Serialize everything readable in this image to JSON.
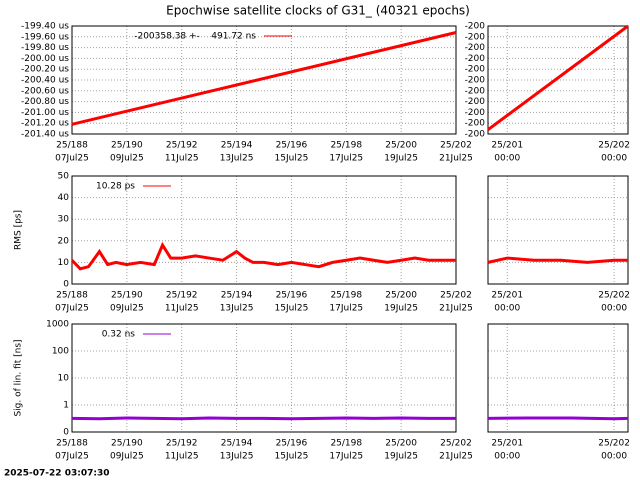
{
  "title": "Epochwise satellite clocks of G31_ (40321 epochs)",
  "timestamp": "2025-07-22 03:07:30",
  "chart_data": [
    {
      "type": "line",
      "xlim": [
        188,
        202
      ],
      "ylim": [
        -201.4,
        -199.4
      ],
      "xticks": [
        {
          "value": 188,
          "label": "25/188"
        },
        {
          "value": 190,
          "label": "25/190"
        },
        {
          "value": 192,
          "label": "25/192"
        },
        {
          "value": 194,
          "label": "25/194"
        },
        {
          "value": 196,
          "label": "25/196"
        },
        {
          "value": 198,
          "label": "25/198"
        },
        {
          "value": 200,
          "label": "25/200"
        },
        {
          "value": 202,
          "label": "25/202"
        }
      ],
      "xtick_sublabels": [
        "07Jul25",
        "09Jul25",
        "11Jul25",
        "13Jul25",
        "15Jul25",
        "17Jul25",
        "19Jul25",
        "21Jul25"
      ],
      "yticks": [
        {
          "value": -199.4,
          "label": "-199.40 us"
        },
        {
          "value": -199.6,
          "label": "-199.60 us"
        },
        {
          "value": -199.8,
          "label": "-199.80 us"
        },
        {
          "value": -200.0,
          "label": "-200.00 us"
        },
        {
          "value": -200.2,
          "label": "-200.20 us"
        },
        {
          "value": -200.4,
          "label": "-200.40 us"
        },
        {
          "value": -200.6,
          "label": "-200.60 us"
        },
        {
          "value": -200.8,
          "label": "-200.80 us"
        },
        {
          "value": -201.0,
          "label": "-201.00 us"
        },
        {
          "value": -201.2,
          "label": "-201.20 us"
        },
        {
          "value": -201.4,
          "label": "-201.40 us"
        }
      ],
      "grid": true,
      "log": false,
      "series": [
        {
          "name": "-200358.38 +-    491.72 ns",
          "color": "#ff0000",
          "x": [
            188,
            202
          ],
          "values": [
            -201.22,
            -199.52
          ]
        }
      ]
    },
    {
      "type": "line",
      "xlim": [
        200.82,
        202.13
      ],
      "ylim": [
        -200.45,
        -199.95
      ],
      "xticks": [
        {
          "value": 201,
          "label": "25/201"
        },
        {
          "value": 202,
          "label": "25/202"
        }
      ],
      "xtick_sublabels": [
        "00:00",
        "00:00"
      ],
      "yticks": [
        {
          "value": -199.95,
          "label": "-200"
        },
        {
          "value": -200.0,
          "label": "-200"
        },
        {
          "value": -200.05,
          "label": "-200"
        },
        {
          "value": -200.1,
          "label": "-200"
        },
        {
          "value": -200.15,
          "label": "-200"
        },
        {
          "value": -200.2,
          "label": "-200"
        },
        {
          "value": -200.25,
          "label": "-200"
        },
        {
          "value": -200.3,
          "label": "-200"
        },
        {
          "value": -200.35,
          "label": "-200"
        },
        {
          "value": -200.4,
          "label": "-200"
        },
        {
          "value": -200.45,
          "label": "-200"
        }
      ],
      "grid": true,
      "log": false,
      "series": [
        {
          "color": "#ff0000",
          "x": [
            200.82,
            202.13
          ],
          "values": [
            -200.43,
            -199.95
          ]
        }
      ]
    },
    {
      "type": "line",
      "ylabel": "RMS [ps]",
      "xlim": [
        188,
        202
      ],
      "ylim": [
        0,
        50
      ],
      "xticks": [
        {
          "value": 188,
          "label": "25/188"
        },
        {
          "value": 190,
          "label": "25/190"
        },
        {
          "value": 192,
          "label": "25/192"
        },
        {
          "value": 194,
          "label": "25/194"
        },
        {
          "value": 196,
          "label": "25/196"
        },
        {
          "value": 198,
          "label": "25/198"
        },
        {
          "value": 200,
          "label": "25/200"
        },
        {
          "value": 202,
          "label": "25/202"
        }
      ],
      "xtick_sublabels": [
        "07Jul25",
        "09Jul25",
        "11Jul25",
        "13Jul25",
        "15Jul25",
        "17Jul25",
        "19Jul25",
        "21Jul25"
      ],
      "yticks": [
        0,
        10,
        20,
        30,
        40,
        50
      ],
      "grid": true,
      "log": false,
      "series": [
        {
          "name": "10.28 ps",
          "color": "#ff0000",
          "x": [
            188,
            188.3,
            188.6,
            189,
            189.3,
            189.6,
            190,
            190.5,
            191,
            191.3,
            191.6,
            192,
            192.5,
            193,
            193.5,
            194,
            194.3,
            194.6,
            195,
            195.5,
            196,
            196.5,
            197,
            197.5,
            198,
            198.5,
            199,
            199.5,
            200,
            200.5,
            201,
            201.5,
            202
          ],
          "values": [
            11,
            7,
            8,
            15,
            9,
            10,
            9,
            10,
            9,
            18,
            12,
            12,
            13,
            12,
            11,
            15,
            12,
            10,
            10,
            9,
            10,
            9,
            8,
            10,
            11,
            12,
            11,
            10,
            11,
            12,
            11,
            11,
            11
          ]
        }
      ]
    },
    {
      "type": "line",
      "xlim": [
        200.82,
        202.13
      ],
      "ylim": [
        0,
        50
      ],
      "xticks": [
        {
          "value": 201,
          "label": "25/201"
        },
        {
          "value": 202,
          "label": "25/202"
        }
      ],
      "xtick_sublabels": [
        "00:00",
        "00:00"
      ],
      "yticks": [
        0,
        10,
        20,
        30,
        40,
        50
      ],
      "show_ytick_labels": false,
      "grid": true,
      "log": false,
      "series": [
        {
          "color": "#ff0000",
          "x": [
            200.82,
            201,
            201.25,
            201.5,
            201.75,
            202,
            202.13
          ],
          "values": [
            10,
            12,
            11,
            11,
            10,
            11,
            11
          ]
        }
      ]
    },
    {
      "type": "line",
      "ylabel": "Sig. of lin. fit [ns]",
      "xlim": [
        188,
        202
      ],
      "ylim": [
        0.1,
        1000
      ],
      "xticks": [
        {
          "value": 188,
          "label": "25/188"
        },
        {
          "value": 190,
          "label": "25/190"
        },
        {
          "value": 192,
          "label": "25/192"
        },
        {
          "value": 194,
          "label": "25/194"
        },
        {
          "value": 196,
          "label": "25/196"
        },
        {
          "value": 198,
          "label": "25/198"
        },
        {
          "value": 200,
          "label": "25/200"
        },
        {
          "value": 202,
          "label": "25/202"
        }
      ],
      "xtick_sublabels": [
        "07Jul25",
        "09Jul25",
        "11Jul25",
        "13Jul25",
        "15Jul25",
        "17Jul25",
        "19Jul25",
        "21Jul25"
      ],
      "yticks": [
        {
          "value": 0.1,
          "label": "0"
        },
        1,
        10,
        100,
        1000
      ],
      "grid": true,
      "log": true,
      "series": [
        {
          "name": "0.32 ns",
          "color": "#9400d3",
          "x": [
            188,
            189,
            190,
            191,
            192,
            193,
            194,
            195,
            196,
            197,
            198,
            199,
            200,
            201,
            202
          ],
          "values": [
            0.32,
            0.31,
            0.33,
            0.32,
            0.31,
            0.33,
            0.32,
            0.32,
            0.31,
            0.32,
            0.33,
            0.32,
            0.33,
            0.32,
            0.32
          ]
        }
      ]
    },
    {
      "type": "line",
      "xlim": [
        200.82,
        202.13
      ],
      "ylim": [
        0.1,
        1000
      ],
      "xticks": [
        {
          "value": 201,
          "label": "25/201"
        },
        {
          "value": 202,
          "label": "25/202"
        }
      ],
      "xtick_sublabels": [
        "00:00",
        "00:00"
      ],
      "yticks": [
        {
          "value": 0.1,
          "label": "0"
        },
        1,
        10,
        100,
        1000
      ],
      "show_ytick_labels": false,
      "grid": true,
      "log": true,
      "series": [
        {
          "color": "#9400d3",
          "x": [
            200.82,
            201.2,
            201.6,
            202,
            202.13
          ],
          "values": [
            0.32,
            0.33,
            0.33,
            0.31,
            0.32
          ]
        }
      ]
    }
  ]
}
